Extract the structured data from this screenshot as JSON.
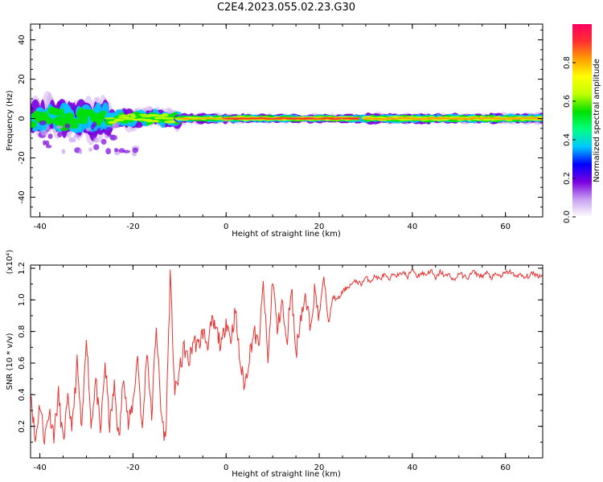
{
  "figure": {
    "title": "C2E4.2023.055.02.23.G30"
  },
  "chart_data": [
    {
      "type": "heatmap",
      "xlabel": "Height of straight line (km)",
      "ylabel": "Frequency (Hz)",
      "xlim": [
        -42,
        68
      ],
      "ylim": [
        -50,
        48
      ],
      "xticks": [
        -40,
        -20,
        0,
        20,
        40,
        60
      ],
      "xtick_labels": [
        "-40",
        "-20",
        "0",
        "20",
        "40",
        "60"
      ],
      "yticks": [
        -40,
        -20,
        0,
        20,
        40
      ],
      "ytick_labels": [
        "-40",
        "-20",
        "0",
        "20",
        "40"
      ],
      "colorbar": {
        "label": "Normalized spectral amplitude",
        "ticks": [
          0.0,
          0.2,
          0.4,
          0.6,
          0.8
        ],
        "tick_labels": [
          "0.0",
          "0.2",
          "0.4",
          "0.6",
          "0.8"
        ],
        "range": [
          0,
          1
        ],
        "colormap": [
          "#ffffff",
          "#c8a0f0",
          "#7a00e0",
          "#0000ff",
          "#00c8ff",
          "#00ff80",
          "#00e000",
          "#c0ff00",
          "#ffff00",
          "#ffa000",
          "#ff3030",
          "#ff0060"
        ]
      },
      "ridge_frequency": 0,
      "segments": [
        {
          "x": [
            -42,
            -25
          ],
          "spread": 10,
          "peak": 0.55
        },
        {
          "x": [
            -25,
            -10
          ],
          "spread": 5,
          "peak": 0.65
        },
        {
          "x": [
            -10,
            0
          ],
          "spread": 3,
          "peak": 0.75
        },
        {
          "x": [
            0,
            30
          ],
          "spread": 2.5,
          "peak": 0.95
        },
        {
          "x": [
            30,
            68
          ],
          "spread": 3,
          "peak": 0.85
        }
      ]
    },
    {
      "type": "line",
      "xlabel": "Height of straight line (km)",
      "ylabel": "SNR (10 * v/v)",
      "scale_label": "(x10⁴)",
      "xlim": [
        -42,
        68
      ],
      "ylim": [
        0,
        1.22
      ],
      "xticks": [
        -40,
        -20,
        0,
        20,
        40,
        60
      ],
      "xtick_labels": [
        "-40",
        "-20",
        "0",
        "20",
        "40",
        "60"
      ],
      "yticks": [
        0.2,
        0.4,
        0.6,
        0.8,
        1.0,
        1.2
      ],
      "ytick_labels": [
        "0.2",
        "0.4",
        "0.6",
        "0.8",
        "1.0",
        "1.2"
      ],
      "color": "#e8302e",
      "series": [
        {
          "x": [
            -42,
            -41,
            -40,
            -39,
            -38,
            -37,
            -36,
            -35,
            -34,
            -33,
            -32,
            -31,
            -30,
            -29,
            -28,
            -27,
            -26,
            -25,
            -24,
            -23,
            -22,
            -21,
            -20,
            -19,
            -18,
            -17,
            -16,
            -15,
            -14,
            -13,
            -12,
            -11,
            -10,
            -9,
            -8,
            -7,
            -6,
            -5,
            -4,
            -3,
            -2,
            -1,
            0,
            1,
            2,
            3,
            4,
            5,
            6,
            7,
            8,
            9,
            10,
            11,
            12,
            13,
            14,
            15,
            16,
            17,
            18,
            19,
            20,
            21,
            22,
            23,
            24,
            25,
            26,
            27,
            28,
            29,
            30,
            31,
            32,
            33,
            34,
            35,
            36,
            37,
            38,
            39,
            40,
            41,
            42,
            43,
            44,
            45,
            46,
            47,
            48,
            49,
            50,
            51,
            52,
            53,
            54,
            55,
            56,
            57,
            58,
            59,
            60,
            61,
            62,
            63,
            64,
            65,
            66,
            67,
            68
          ],
          "y": [
            0.45,
            0.1,
            0.35,
            0.12,
            0.3,
            0.15,
            0.4,
            0.1,
            0.35,
            0.2,
            0.6,
            0.15,
            0.8,
            0.2,
            0.5,
            0.15,
            0.6,
            0.2,
            0.45,
            0.1,
            0.55,
            0.2,
            0.35,
            0.65,
            0.15,
            0.7,
            0.25,
            0.85,
            0.3,
            0.1,
            1.15,
            0.4,
            0.55,
            0.7,
            0.6,
            0.75,
            0.7,
            0.8,
            0.72,
            0.85,
            0.8,
            0.7,
            0.88,
            0.75,
            0.93,
            0.6,
            0.45,
            0.65,
            0.8,
            0.7,
            1.1,
            0.6,
            1.15,
            0.8,
            1.0,
            0.7,
            1.1,
            0.65,
            0.9,
            1.0,
            0.85,
            1.05,
            0.9,
            1.15,
            0.85,
            1.02,
            1.0,
            1.05,
            1.08,
            1.1,
            1.12,
            1.1,
            1.14,
            1.12,
            1.15,
            1.13,
            1.16,
            1.12,
            1.17,
            1.15,
            1.18,
            1.14,
            1.2,
            1.15,
            1.17,
            1.16,
            1.19,
            1.13,
            1.18,
            1.15,
            1.16,
            1.12,
            1.17,
            1.15,
            1.14,
            1.18,
            1.16,
            1.15,
            1.17,
            1.14,
            1.16,
            1.15,
            1.17,
            1.18,
            1.15,
            1.16,
            1.14,
            1.15,
            1.17,
            1.15,
            1.16
          ]
        }
      ]
    }
  ]
}
